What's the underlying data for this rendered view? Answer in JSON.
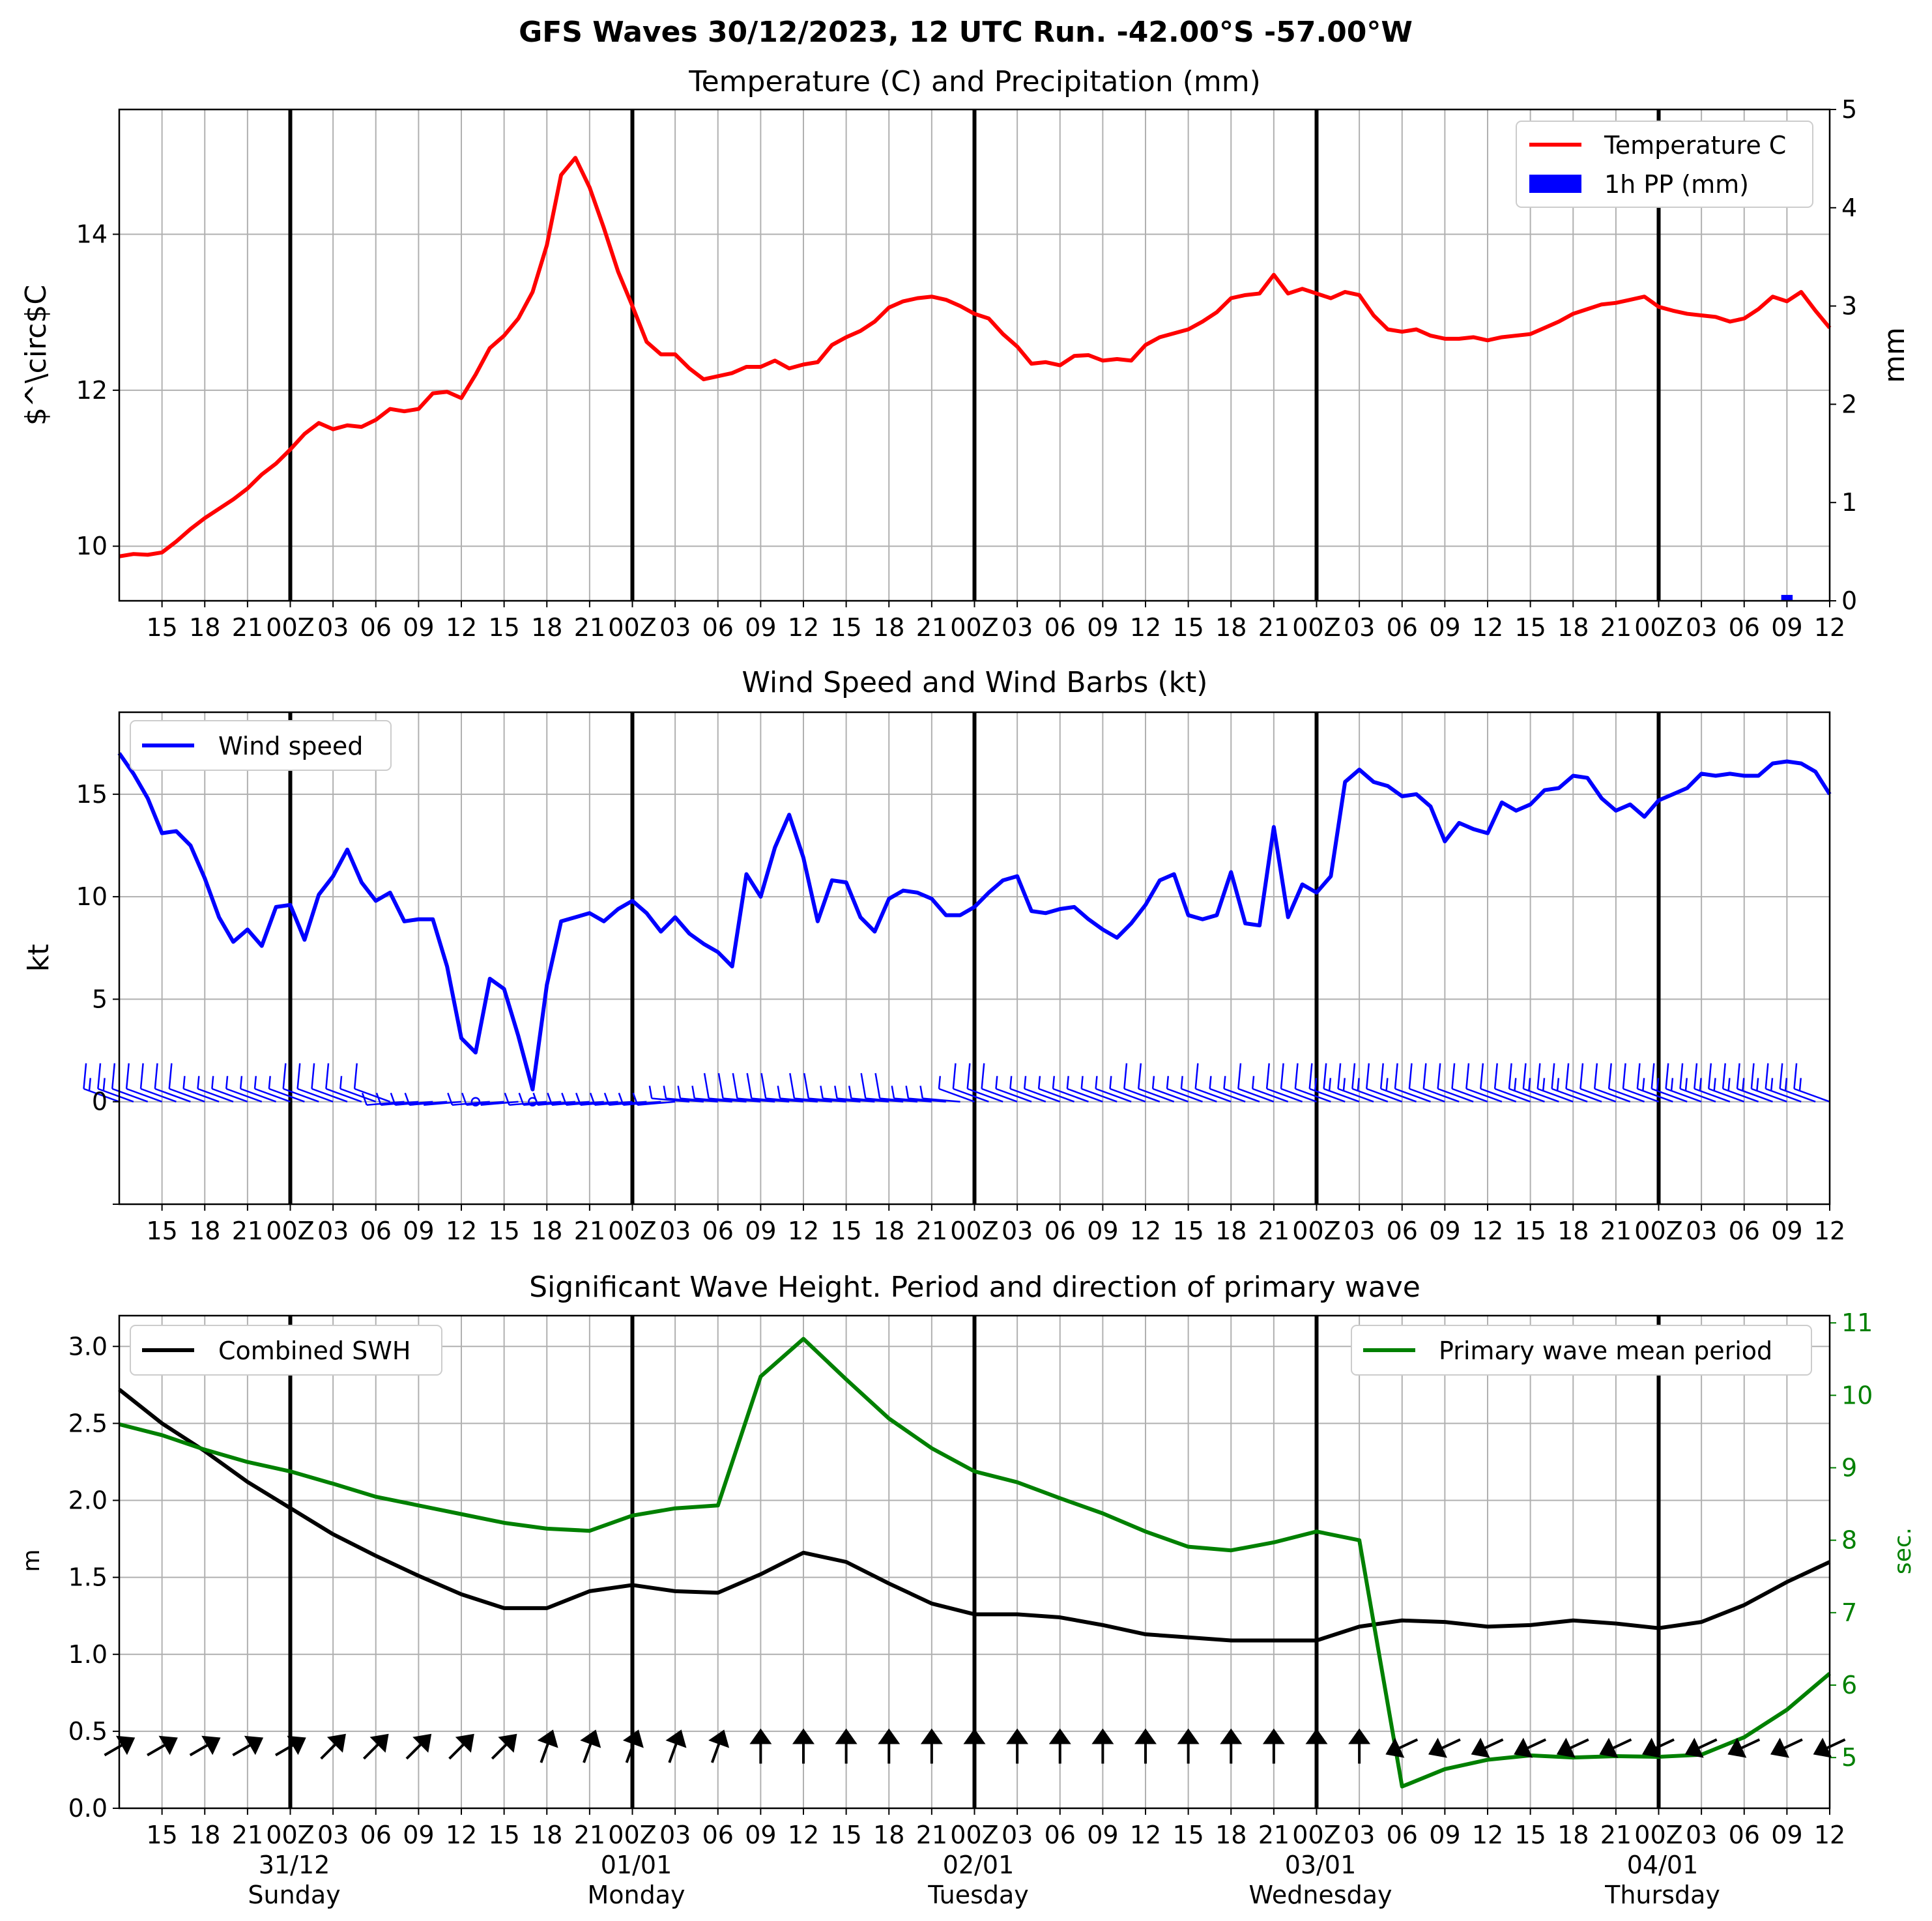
{
  "figure": {
    "suptitle": "GFS Waves 30/12/2023, 12 UTC Run. -42.00°S -57.00°W",
    "x_tick_labels": [
      "15",
      "18",
      "21",
      "00Z",
      "03",
      "06",
      "09",
      "12",
      "15",
      "18",
      "21",
      "00Z",
      "03",
      "06",
      "09",
      "12",
      "15",
      "18",
      "21",
      "00Z",
      "03",
      "06",
      "09",
      "12",
      "15",
      "18",
      "21",
      "00Z",
      "03",
      "06",
      "09",
      "12",
      "15",
      "18",
      "21",
      "00Z",
      "03",
      "06",
      "09",
      "12"
    ],
    "day_labels": [
      {
        "date": "31/12",
        "weekday": "Sunday"
      },
      {
        "date": "01/01",
        "weekday": "Monday"
      },
      {
        "date": "02/01",
        "weekday": "Tuesday"
      },
      {
        "date": "03/01",
        "weekday": "Wednesday"
      },
      {
        "date": "04/01",
        "weekday": "Thursday"
      }
    ]
  },
  "chart_data": [
    {
      "type": "line",
      "title": "Temperature (C) and Precipitation (mm)",
      "xlabel": "",
      "x_range_hours": [
        0,
        120
      ],
      "x_note": "hours after 30/12/2023 12 UTC",
      "ylabel": "$^\\circ$C",
      "ylim": [
        9.3,
        15.6
      ],
      "yticks": [
        10,
        12,
        14
      ],
      "y2label": "mm",
      "y2lim": [
        0,
        5
      ],
      "y2ticks": [
        0,
        1,
        2,
        3,
        4,
        5
      ],
      "grid": true,
      "legend_position": "top-right",
      "series": [
        {
          "name": "Temperature C",
          "color": "#ff0000",
          "axis": "left",
          "x": [
            0,
            1,
            2,
            3,
            4,
            5,
            6,
            7,
            8,
            9,
            10,
            11,
            12,
            13,
            14,
            15,
            16,
            17,
            18,
            19,
            20,
            21,
            22,
            23,
            24,
            25,
            26,
            27,
            28,
            29,
            30,
            31,
            32,
            33,
            34,
            35,
            36,
            37,
            38,
            39,
            40,
            41,
            42,
            43,
            44,
            45,
            46,
            47,
            48,
            49,
            50,
            51,
            52,
            53,
            54,
            55,
            56,
            57,
            58,
            59,
            60,
            61,
            62,
            63,
            64,
            65,
            66,
            67,
            68,
            69,
            70,
            71,
            72,
            73,
            74,
            75,
            76,
            77,
            78,
            79,
            80,
            81,
            82,
            83,
            84,
            85,
            86,
            87,
            88,
            89,
            90,
            91,
            92,
            93,
            94,
            95,
            96,
            97,
            98,
            99,
            100,
            101,
            102,
            103,
            104,
            105,
            106,
            107,
            108,
            109,
            110,
            111,
            112,
            113,
            114,
            115,
            116,
            117,
            118,
            119,
            120
          ],
          "y": [
            9.87,
            9.9,
            9.89,
            9.92,
            10.06,
            10.22,
            10.36,
            10.48,
            10.6,
            10.74,
            10.92,
            11.06,
            11.24,
            11.44,
            11.58,
            11.5,
            11.55,
            11.53,
            11.62,
            11.76,
            11.73,
            11.76,
            11.96,
            11.98,
            11.9,
            12.2,
            12.54,
            12.7,
            12.92,
            13.26,
            13.86,
            14.76,
            14.98,
            14.6,
            14.08,
            13.52,
            13.08,
            12.62,
            12.46,
            12.46,
            12.28,
            12.14,
            12.18,
            12.22,
            12.3,
            12.3,
            12.38,
            12.28,
            12.33,
            12.36,
            12.58,
            12.68,
            12.76,
            12.88,
            13.06,
            13.14,
            13.18,
            13.2,
            13.16,
            13.08,
            12.98,
            12.92,
            12.72,
            12.56,
            12.34,
            12.36,
            12.32,
            12.44,
            12.45,
            12.38,
            12.4,
            12.38,
            12.58,
            12.68,
            12.73,
            12.78,
            12.88,
            13.0,
            13.18,
            13.22,
            13.24,
            13.48,
            13.24,
            13.3,
            13.24,
            13.18,
            13.26,
            13.22,
            12.96,
            12.78,
            12.75,
            12.78,
            12.7,
            12.66,
            12.66,
            12.68,
            12.64,
            12.68,
            12.7,
            12.72,
            12.8,
            12.88,
            12.98,
            13.04,
            13.1,
            13.12,
            13.16,
            13.2,
            13.07,
            13.02,
            12.98,
            12.96,
            12.94,
            12.88,
            12.92,
            13.04,
            13.2,
            13.14,
            13.26,
            13.02,
            12.8
          ]
        },
        {
          "name": "1h PP (mm)",
          "color": "#0000ff",
          "axis": "right",
          "kind": "bar",
          "x": [
            117
          ],
          "y": [
            0.06
          ]
        }
      ]
    },
    {
      "type": "line",
      "title": "Wind Speed and Wind Barbs (kt)",
      "xlabel": "",
      "ylabel": "kt",
      "ylim": [
        -5,
        19
      ],
      "yticks": [
        0,
        5,
        10,
        15
      ],
      "grid": true,
      "legend_position": "top-left",
      "barbs_note": "wind barbs plotted along y = 0, direction rotating from SW early to W/NW later",
      "series": [
        {
          "name": "Wind speed",
          "color": "#0000ff",
          "x": [
            0,
            1,
            2,
            3,
            4,
            5,
            6,
            7,
            8,
            9,
            10,
            11,
            12,
            13,
            14,
            15,
            16,
            17,
            18,
            19,
            20,
            21,
            22,
            23,
            24,
            25,
            26,
            27,
            28,
            29,
            30,
            31,
            32,
            33,
            34,
            35,
            36,
            37,
            38,
            39,
            40,
            41,
            42,
            43,
            44,
            45,
            46,
            47,
            48,
            49,
            50,
            51,
            52,
            53,
            54,
            55,
            56,
            57,
            58,
            59,
            60,
            61,
            62,
            63,
            64,
            65,
            66,
            67,
            68,
            69,
            70,
            71,
            72,
            73,
            74,
            75,
            76,
            77,
            78,
            79,
            80,
            81,
            82,
            83,
            84,
            85,
            86,
            87,
            88,
            89,
            90,
            91,
            92,
            93,
            94,
            95,
            96,
            97,
            98,
            99,
            100,
            101,
            102,
            103,
            104,
            105,
            106,
            107,
            108,
            109,
            110,
            111,
            112,
            113,
            114,
            115,
            116,
            117,
            118,
            119,
            120
          ],
          "y": [
            17.0,
            16.0,
            14.8,
            13.1,
            13.2,
            12.5,
            10.9,
            9.0,
            7.8,
            8.4,
            7.6,
            9.5,
            9.6,
            7.9,
            10.1,
            11.0,
            12.3,
            10.7,
            9.8,
            10.2,
            8.8,
            8.9,
            8.9,
            6.6,
            3.1,
            2.4,
            6.0,
            5.5,
            3.2,
            0.6,
            5.7,
            8.8,
            9.0,
            9.2,
            8.8,
            9.4,
            9.8,
            9.2,
            8.3,
            9.0,
            8.2,
            7.7,
            7.3,
            6.6,
            11.1,
            10.0,
            12.4,
            14.0,
            11.9,
            8.8,
            10.8,
            10.7,
            9.0,
            8.3,
            9.9,
            10.3,
            10.2,
            9.9,
            9.1,
            9.1,
            9.5,
            10.2,
            10.8,
            11.0,
            9.3,
            9.2,
            9.4,
            9.5,
            8.9,
            8.4,
            8.0,
            8.7,
            9.6,
            10.8,
            11.1,
            9.1,
            8.9,
            9.1,
            11.2,
            8.7,
            8.6,
            13.4,
            9.0,
            10.6,
            10.2,
            11.0,
            15.6,
            16.2,
            15.6,
            15.4,
            14.9,
            15.0,
            14.4,
            12.7,
            13.6,
            13.3,
            13.1,
            14.6,
            14.2,
            14.5,
            15.2,
            15.3,
            15.9,
            15.8,
            14.8,
            14.2,
            14.5,
            13.9,
            14.7,
            15.0,
            15.3,
            16.0,
            15.9,
            16.0,
            15.9,
            15.9,
            16.5,
            16.6,
            16.5,
            16.1,
            15.0
          ]
        }
      ]
    },
    {
      "type": "line",
      "title": "Significant Wave Height. Period and direction of primary wave",
      "xlabel": "",
      "ylabel": "m",
      "ylim": [
        0.0,
        3.2
      ],
      "yticks": [
        0.0,
        0.5,
        1.0,
        1.5,
        2.0,
        2.5,
        3.0
      ],
      "y2label": "sec.",
      "y2lim": [
        4.3,
        11.1
      ],
      "y2ticks": [
        5,
        6,
        7,
        8,
        9,
        10,
        11
      ],
      "grid": true,
      "legend_left": "top-left",
      "legend_right": "top-right",
      "arrows_note": "primary wave direction arrows at y = 0.4; pointing N/NE until 03 UTC 03/01, then pointing SW",
      "series": [
        {
          "name": "Combined SWH",
          "color": "#000000",
          "axis": "left",
          "x": [
            0,
            3,
            6,
            9,
            12,
            15,
            18,
            21,
            24,
            27,
            30,
            33,
            36,
            39,
            42,
            45,
            48,
            51,
            54,
            57,
            60,
            63,
            66,
            69,
            72,
            75,
            78,
            81,
            84,
            87,
            90,
            93,
            96,
            99,
            102,
            105,
            108,
            111,
            114,
            117,
            120
          ],
          "y": [
            2.72,
            2.5,
            2.32,
            2.12,
            1.95,
            1.78,
            1.64,
            1.51,
            1.39,
            1.3,
            1.3,
            1.41,
            1.45,
            1.41,
            1.4,
            1.52,
            1.66,
            1.6,
            1.46,
            1.33,
            1.26,
            1.26,
            1.24,
            1.19,
            1.13,
            1.11,
            1.09,
            1.09,
            1.09,
            1.18,
            1.22,
            1.21,
            1.18,
            1.19,
            1.22,
            1.2,
            1.17,
            1.21,
            1.32,
            1.47,
            1.6
          ]
        },
        {
          "name": "Primary wave mean period",
          "color": "#008000",
          "axis": "right",
          "x": [
            0,
            3,
            6,
            9,
            12,
            15,
            18,
            21,
            24,
            27,
            30,
            33,
            36,
            39,
            42,
            45,
            48,
            51,
            54,
            57,
            60,
            63,
            66,
            69,
            72,
            75,
            78,
            81,
            84,
            87,
            90,
            93,
            96,
            99,
            102,
            105,
            108,
            111,
            114,
            117,
            120
          ],
          "y": [
            9.6,
            9.45,
            9.25,
            9.08,
            8.95,
            8.78,
            8.6,
            8.48,
            8.36,
            8.24,
            8.16,
            8.13,
            8.34,
            8.44,
            8.48,
            10.26,
            10.78,
            10.22,
            9.68,
            9.27,
            8.95,
            8.8,
            8.58,
            8.37,
            8.12,
            7.91,
            7.86,
            7.97,
            8.12,
            8.0,
            4.6,
            4.84,
            4.97,
            5.03,
            5.0,
            5.02,
            5.01,
            5.04,
            5.28,
            5.66,
            6.16
          ]
        }
      ]
    }
  ]
}
